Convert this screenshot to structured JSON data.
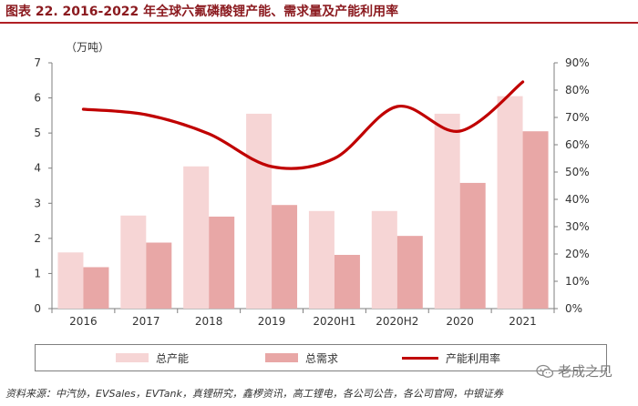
{
  "title": "图表 22. 2016-2022 年全球六氟磷酸锂产能、需求量及产能利用率",
  "unit_label": "（万吨）",
  "source": "资料来源：中汽协，EVSales，EVTank，真锂研究，鑫椤资讯，高工锂电，各公司公告，各公司官网，中银证券",
  "watermark": "老成之见",
  "colors": {
    "capacity": "#f6d5d5",
    "demand": "#e8a7a6",
    "utilization": "#c00000",
    "title": "#8b1a1f",
    "axis": "#7f7f7f"
  },
  "chart_data": {
    "type": "bar",
    "categories": [
      "2016",
      "2017",
      "2018",
      "2019",
      "2020H1",
      "2020H2",
      "2020",
      "2021"
    ],
    "series": [
      {
        "name": "总产能",
        "type": "bar",
        "axis": "left",
        "values": [
          1.6,
          2.65,
          4.05,
          5.55,
          2.78,
          2.78,
          5.55,
          6.05
        ]
      },
      {
        "name": "总需求",
        "type": "bar",
        "axis": "left",
        "values": [
          1.18,
          1.88,
          2.62,
          2.95,
          1.53,
          2.07,
          3.58,
          5.05
        ]
      },
      {
        "name": "产能利用率",
        "type": "line",
        "axis": "right",
        "values": [
          73,
          71,
          64,
          52,
          55,
          74,
          65,
          83
        ]
      }
    ],
    "ylim_left": [
      0,
      7
    ],
    "yticks_left": [
      "0",
      "1",
      "2",
      "3",
      "4",
      "5",
      "6",
      "7"
    ],
    "ylim_right": [
      0,
      90
    ],
    "yticks_right": [
      "0%",
      "10%",
      "20%",
      "30%",
      "40%",
      "50%",
      "60%",
      "70%",
      "80%",
      "90%"
    ],
    "ylabel": "（万吨）",
    "grid": false,
    "legend": "bottom"
  }
}
